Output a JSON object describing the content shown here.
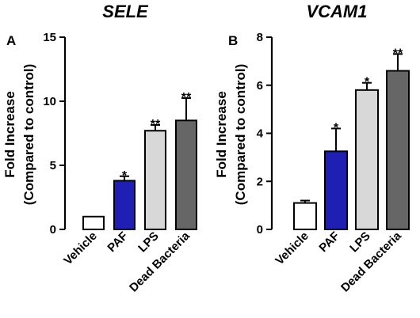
{
  "chart_data": [
    {
      "type": "bar",
      "panel": "A",
      "title": "SELE",
      "ylabel_line1": "Fold Increase",
      "ylabel_line2": "(Compared to control)",
      "ylim": [
        0,
        15
      ],
      "yticks": [
        0,
        5,
        10,
        15
      ],
      "categories": [
        "Vehicle",
        "PAF",
        "LPS",
        "Dead Bacteria"
      ],
      "values": [
        1.0,
        3.8,
        7.7,
        8.5
      ],
      "errors": [
        0.0,
        0.35,
        0.45,
        1.75
      ],
      "significance": [
        "",
        "*",
        "**",
        "**"
      ],
      "colors": [
        "#ffffff",
        "#1f1fb4",
        "#d8d8d8",
        "#666666"
      ]
    },
    {
      "type": "bar",
      "panel": "B",
      "title": "VCAM1",
      "ylabel_line1": "Fold Increase",
      "ylabel_line2": "(Compared to control)",
      "ylim": [
        0,
        8
      ],
      "yticks": [
        0,
        2,
        4,
        6,
        8
      ],
      "categories": [
        "Vehicle",
        "PAF",
        "LPS",
        "Dead Bacteria"
      ],
      "values": [
        1.1,
        3.25,
        5.8,
        6.6
      ],
      "errors": [
        0.1,
        0.95,
        0.3,
        0.7
      ],
      "significance": [
        "",
        "*",
        "*",
        "**"
      ],
      "colors": [
        "#ffffff",
        "#1f1fb4",
        "#d8d8d8",
        "#666666"
      ]
    }
  ]
}
